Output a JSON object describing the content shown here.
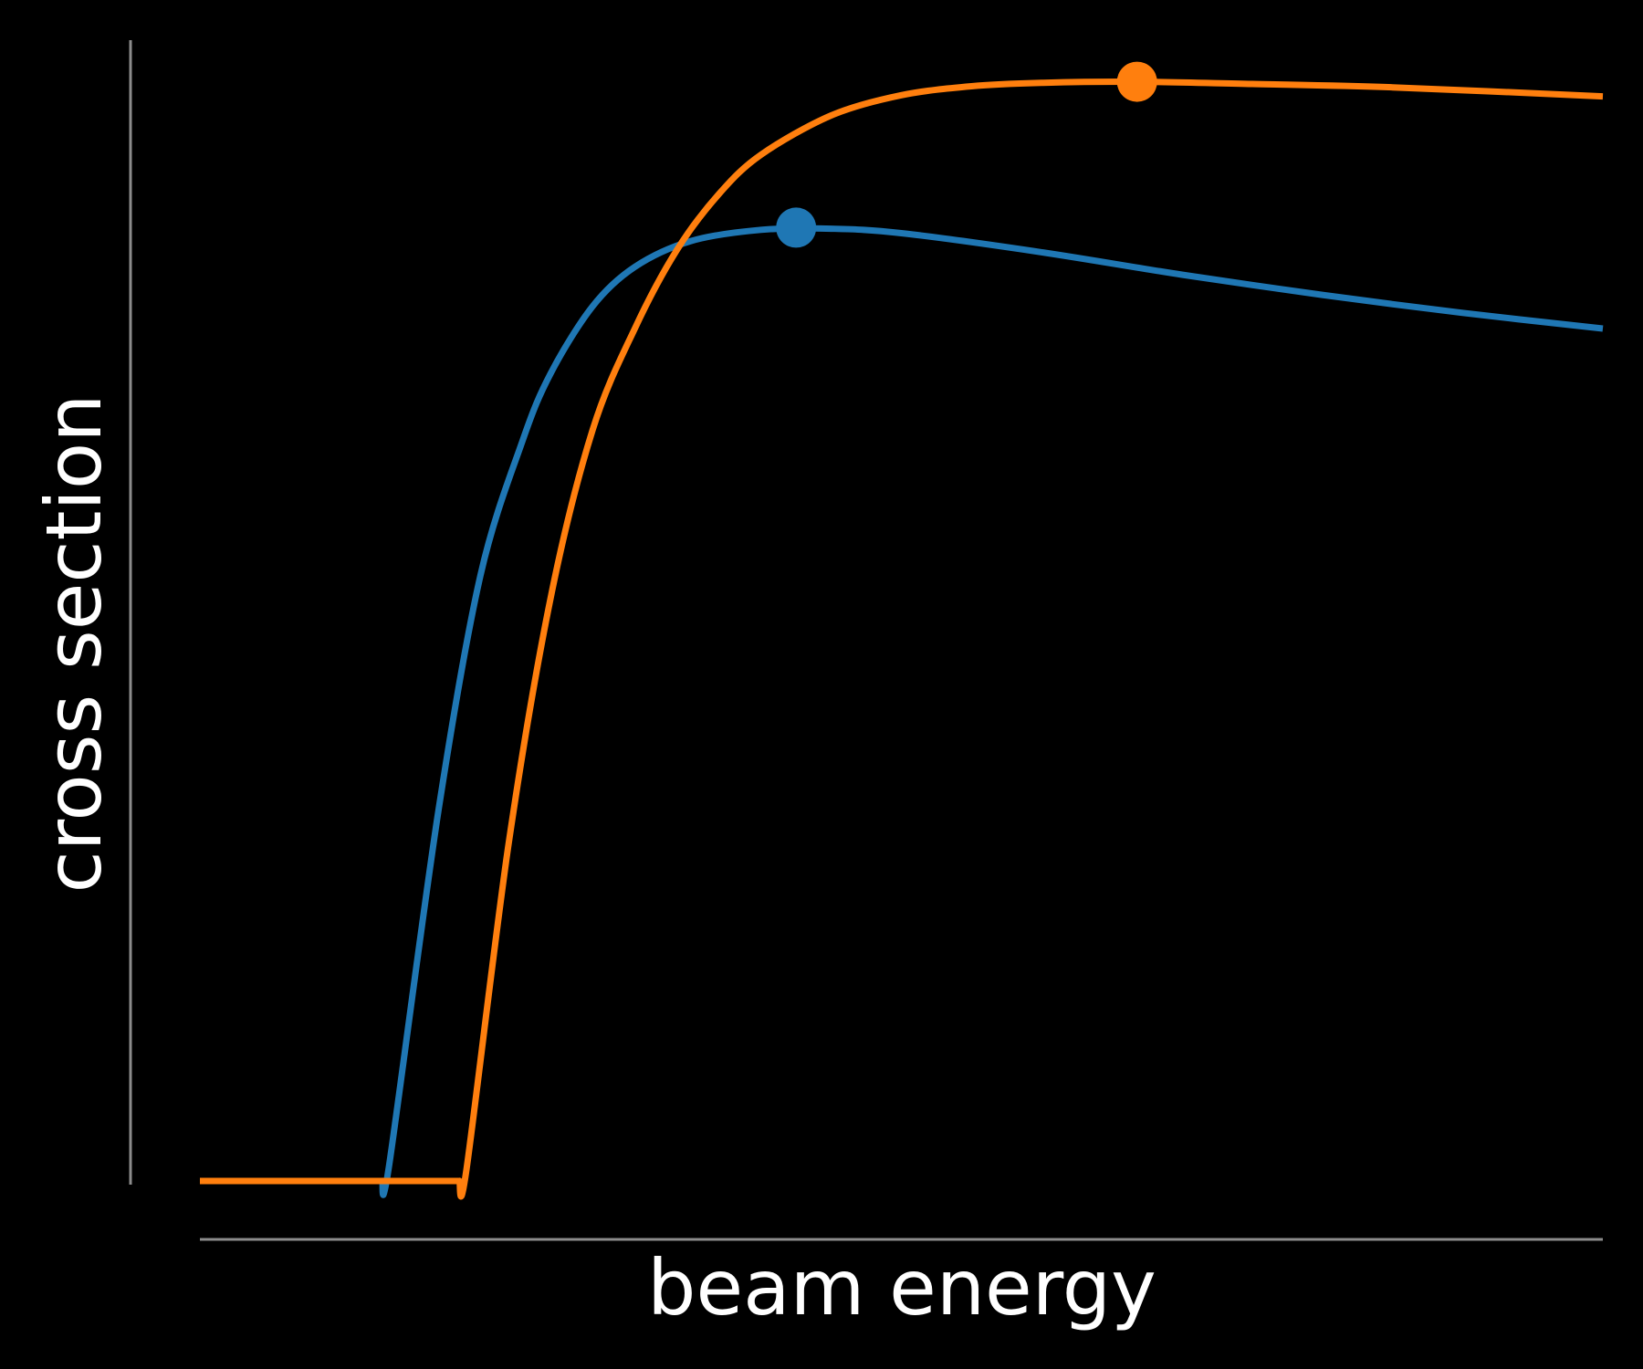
{
  "chart_data": {
    "type": "line",
    "title": "",
    "xlabel": "beam energy",
    "ylabel": "cross section",
    "xlim": [
      0,
      1
    ],
    "ylim": [
      0,
      1
    ],
    "grid": false,
    "legend": "none",
    "ticks": false,
    "series": [
      {
        "color": "#1f77b4",
        "x": [
          0.0,
          0.13,
          0.135,
          0.17,
          0.2,
          0.23,
          0.25,
          0.28,
          0.31,
          0.35,
          0.4,
          0.45,
          0.5,
          0.6,
          0.7,
          0.8,
          0.9,
          1.0
        ],
        "y": [
          0.0,
          0.0,
          0.015,
          0.33,
          0.54,
          0.66,
          0.72,
          0.78,
          0.815,
          0.838,
          0.848,
          0.849,
          0.845,
          0.828,
          0.808,
          0.79,
          0.774,
          0.76
        ],
        "peak": {
          "x": 0.425,
          "y": 0.85
        }
      },
      {
        "color": "#ff7f0e",
        "x": [
          0.0,
          0.185,
          0.19,
          0.22,
          0.25,
          0.28,
          0.31,
          0.34,
          0.37,
          0.4,
          0.45,
          0.5,
          0.55,
          0.6,
          0.67,
          0.75,
          0.85,
          1.0
        ],
        "y": [
          0.0,
          0.0,
          0.01,
          0.3,
          0.52,
          0.67,
          0.76,
          0.83,
          0.88,
          0.915,
          0.95,
          0.968,
          0.976,
          0.979,
          0.98,
          0.978,
          0.975,
          0.967
        ],
        "peak": {
          "x": 0.668,
          "y": 0.98
        }
      }
    ]
  }
}
